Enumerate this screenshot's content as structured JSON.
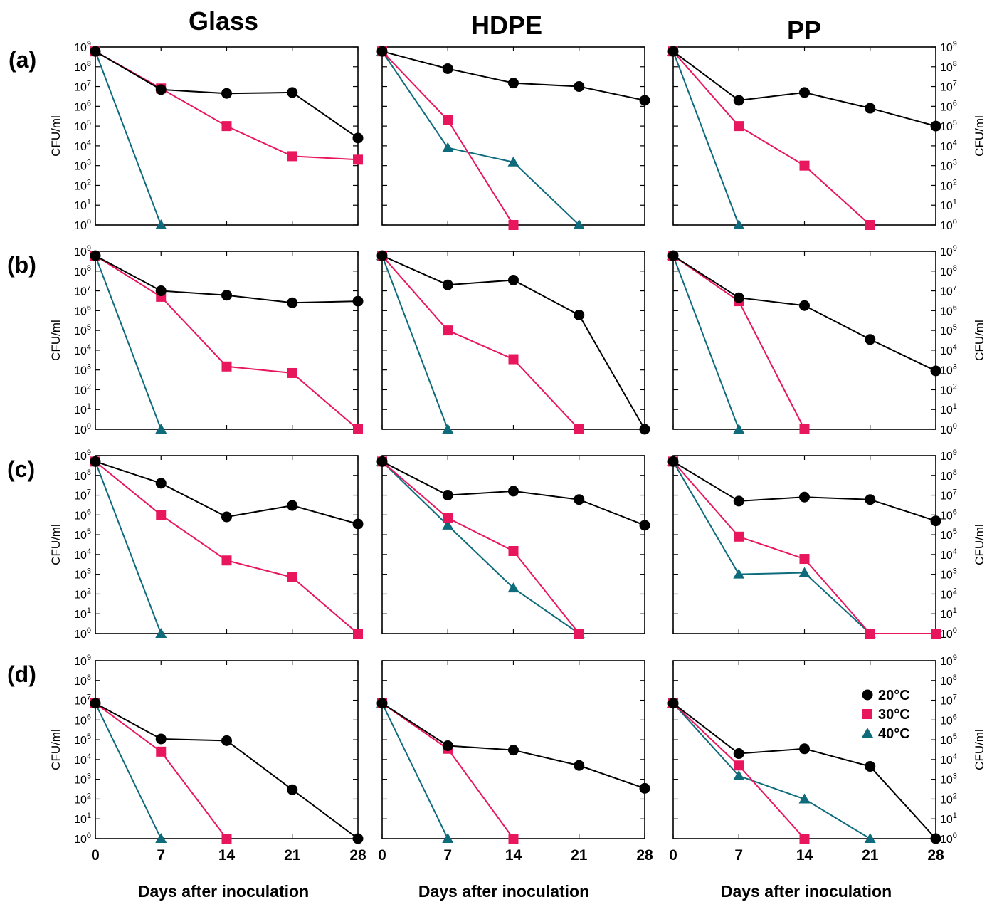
{
  "figure": {
    "column_titles": [
      "Glass",
      "HDPE",
      "PP"
    ],
    "row_labels": [
      "(a)",
      "(b)",
      "(c)",
      "(d)"
    ],
    "y_axis_label": "CFU/ml",
    "x_axis_label": "Days after inoculation",
    "x_tick_labels": [
      "0",
      "7",
      "14",
      "21",
      "28"
    ],
    "y_tick_base": "10",
    "y_tick_exponents": [
      "0",
      "1",
      "2",
      "3",
      "4",
      "5",
      "6",
      "7",
      "8",
      "9"
    ],
    "legend": {
      "items": [
        {
          "label": "20°C",
          "marker": "circle",
          "color": "#000000"
        },
        {
          "label": "30°C",
          "marker": "square",
          "color": "#e8175d"
        },
        {
          "label": "40°C",
          "marker": "triangle",
          "color": "#0d6b7c"
        }
      ]
    }
  },
  "chart_data": [
    {
      "type": "line",
      "row": "(a)",
      "column": "Glass",
      "yscale": "log10",
      "ylim": [
        1,
        1000000000
      ],
      "xlim": [
        0,
        28
      ],
      "series": [
        {
          "name": "20°C",
          "x": [
            0,
            7,
            14,
            21,
            28
          ],
          "y": [
            600000000,
            7000000,
            4500000,
            5000000,
            25000
          ]
        },
        {
          "name": "30°C",
          "x": [
            0,
            7,
            14,
            21,
            28
          ],
          "y": [
            600000000,
            8000000,
            100000,
            3000,
            2000
          ]
        },
        {
          "name": "40°C",
          "x": [
            0,
            7
          ],
          "y": [
            600000000,
            1
          ]
        }
      ]
    },
    {
      "type": "line",
      "row": "(a)",
      "column": "HDPE",
      "yscale": "log10",
      "ylim": [
        1,
        1000000000
      ],
      "xlim": [
        0,
        28
      ],
      "series": [
        {
          "name": "20°C",
          "x": [
            0,
            7,
            14,
            21,
            28
          ],
          "y": [
            600000000,
            80000000,
            15000000,
            10000000,
            2000000
          ]
        },
        {
          "name": "30°C",
          "x": [
            0,
            7,
            14
          ],
          "y": [
            600000000,
            200000,
            1
          ]
        },
        {
          "name": "40°C",
          "x": [
            0,
            7,
            14,
            21
          ],
          "y": [
            600000000,
            8000,
            1500,
            1
          ]
        }
      ]
    },
    {
      "type": "line",
      "row": "(a)",
      "column": "PP",
      "yscale": "log10",
      "ylim": [
        1,
        1000000000
      ],
      "xlim": [
        0,
        28
      ],
      "series": [
        {
          "name": "20°C",
          "x": [
            0,
            7,
            14,
            21,
            28
          ],
          "y": [
            600000000,
            2000000,
            5000000,
            800000,
            100000
          ]
        },
        {
          "name": "30°C",
          "x": [
            0,
            7,
            14,
            21
          ],
          "y": [
            600000000,
            100000,
            1000,
            1
          ]
        },
        {
          "name": "40°C",
          "x": [
            0,
            7
          ],
          "y": [
            600000000,
            1
          ]
        }
      ]
    },
    {
      "type": "line",
      "row": "(b)",
      "column": "Glass",
      "yscale": "log10",
      "ylim": [
        1,
        1000000000
      ],
      "xlim": [
        0,
        28
      ],
      "series": [
        {
          "name": "20°C",
          "x": [
            0,
            7,
            14,
            21,
            28
          ],
          "y": [
            600000000,
            10000000,
            6000000,
            2500000,
            3000000
          ]
        },
        {
          "name": "30°C",
          "x": [
            0,
            7,
            14,
            21,
            28
          ],
          "y": [
            600000000,
            5000000,
            1500,
            700,
            1
          ]
        },
        {
          "name": "40°C",
          "x": [
            0,
            7
          ],
          "y": [
            600000000,
            1
          ]
        }
      ]
    },
    {
      "type": "line",
      "row": "(b)",
      "column": "HDPE",
      "yscale": "log10",
      "ylim": [
        1,
        1000000000
      ],
      "xlim": [
        0,
        28
      ],
      "series": [
        {
          "name": "20°C",
          "x": [
            0,
            7,
            14,
            21,
            28
          ],
          "y": [
            600000000,
            20000000,
            35000000,
            600000,
            1
          ]
        },
        {
          "name": "30°C",
          "x": [
            0,
            7,
            14,
            21
          ],
          "y": [
            600000000,
            100000,
            3500,
            1
          ]
        },
        {
          "name": "40°C",
          "x": [
            0,
            7
          ],
          "y": [
            600000000,
            1
          ]
        }
      ]
    },
    {
      "type": "line",
      "row": "(b)",
      "column": "PP",
      "yscale": "log10",
      "ylim": [
        1,
        1000000000
      ],
      "xlim": [
        0,
        28
      ],
      "series": [
        {
          "name": "20°C",
          "x": [
            0,
            7,
            14,
            21,
            28
          ],
          "y": [
            600000000,
            4500000,
            1800000,
            35000,
            900
          ]
        },
        {
          "name": "30°C",
          "x": [
            0,
            7,
            14
          ],
          "y": [
            600000000,
            3000000,
            1
          ]
        },
        {
          "name": "40°C",
          "x": [
            0,
            7
          ],
          "y": [
            600000000,
            1
          ]
        }
      ]
    },
    {
      "type": "line",
      "row": "(c)",
      "column": "Glass",
      "yscale": "log10",
      "ylim": [
        1,
        1000000000
      ],
      "xlim": [
        0,
        28
      ],
      "series": [
        {
          "name": "20°C",
          "x": [
            0,
            7,
            14,
            21,
            28
          ],
          "y": [
            500000000,
            40000000,
            800000,
            3000000,
            350000
          ]
        },
        {
          "name": "30°C",
          "x": [
            0,
            7,
            14,
            21,
            28
          ],
          "y": [
            500000000,
            1000000,
            5000,
            700,
            1
          ]
        },
        {
          "name": "40°C",
          "x": [
            0,
            7
          ],
          "y": [
            500000000,
            1
          ]
        }
      ]
    },
    {
      "type": "line",
      "row": "(c)",
      "column": "HDPE",
      "yscale": "log10",
      "ylim": [
        1,
        1000000000
      ],
      "xlim": [
        0,
        28
      ],
      "series": [
        {
          "name": "20°C",
          "x": [
            0,
            7,
            14,
            21,
            28
          ],
          "y": [
            500000000,
            10000000,
            16000000,
            6000000,
            300000
          ]
        },
        {
          "name": "30°C",
          "x": [
            0,
            7,
            14,
            21
          ],
          "y": [
            500000000,
            700000,
            15000,
            1
          ]
        },
        {
          "name": "40°C",
          "x": [
            0,
            7,
            14,
            21
          ],
          "y": [
            500000000,
            300000,
            200,
            1
          ]
        }
      ]
    },
    {
      "type": "line",
      "row": "(c)",
      "column": "PP",
      "yscale": "log10",
      "ylim": [
        1,
        1000000000
      ],
      "xlim": [
        0,
        28
      ],
      "series": [
        {
          "name": "20°C",
          "x": [
            0,
            7,
            14,
            21,
            28
          ],
          "y": [
            500000000,
            5000000,
            8000000,
            6000000,
            500000
          ]
        },
        {
          "name": "30°C",
          "x": [
            0,
            7,
            14,
            21,
            28
          ],
          "y": [
            500000000,
            80000,
            6000,
            1,
            1
          ]
        },
        {
          "name": "40°C",
          "x": [
            0,
            7,
            14,
            21
          ],
          "y": [
            500000000,
            1000,
            1200,
            1
          ]
        }
      ]
    },
    {
      "type": "line",
      "row": "(d)",
      "column": "Glass",
      "yscale": "log10",
      "ylim": [
        1,
        1000000000
      ],
      "xlim": [
        0,
        28
      ],
      "series": [
        {
          "name": "20°C",
          "x": [
            0,
            7,
            14,
            21,
            28
          ],
          "y": [
            7000000,
            110000,
            90000,
            300,
            1
          ]
        },
        {
          "name": "30°C",
          "x": [
            0,
            7,
            14
          ],
          "y": [
            7000000,
            25000,
            1
          ]
        },
        {
          "name": "40°C",
          "x": [
            0,
            7
          ],
          "y": [
            7000000,
            1
          ]
        }
      ]
    },
    {
      "type": "line",
      "row": "(d)",
      "column": "HDPE",
      "yscale": "log10",
      "ylim": [
        1,
        1000000000
      ],
      "xlim": [
        0,
        28
      ],
      "series": [
        {
          "name": "20°C",
          "x": [
            0,
            7,
            14,
            21,
            28
          ],
          "y": [
            7000000,
            50000,
            30000,
            5000,
            350
          ]
        },
        {
          "name": "30°C",
          "x": [
            0,
            7,
            14
          ],
          "y": [
            7000000,
            35000,
            1
          ]
        },
        {
          "name": "40°C",
          "x": [
            0,
            7
          ],
          "y": [
            7000000,
            1
          ]
        }
      ]
    },
    {
      "type": "line",
      "row": "(d)",
      "column": "PP",
      "yscale": "log10",
      "ylim": [
        1,
        1000000000
      ],
      "xlim": [
        0,
        28
      ],
      "series": [
        {
          "name": "20°C",
          "x": [
            0,
            7,
            14,
            21,
            28
          ],
          "y": [
            7000000,
            20000,
            35000,
            4500,
            1
          ]
        },
        {
          "name": "30°C",
          "x": [
            0,
            7,
            14
          ],
          "y": [
            7000000,
            5000,
            1
          ]
        },
        {
          "name": "40°C",
          "x": [
            0,
            7,
            14,
            21
          ],
          "y": [
            7000000,
            1500,
            100,
            1
          ]
        }
      ]
    }
  ]
}
